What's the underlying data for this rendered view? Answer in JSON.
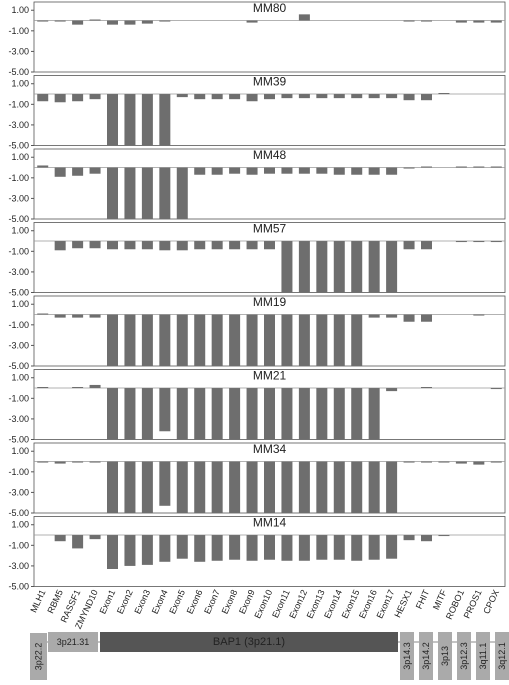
{
  "chart_data": [
    {
      "type": "bar",
      "title": "MM80",
      "color": "#6e6e6e",
      "ylim": [
        -5,
        1.8
      ],
      "yticks": [
        {
          "value": 1,
          "label": "1.00"
        },
        {
          "value": -1,
          "label": "-1.00"
        },
        {
          "value": -3,
          "label": "-3.00"
        },
        {
          "value": -5,
          "label": "-5.00"
        }
      ],
      "values": [
        -0.1,
        -0.1,
        -0.4,
        0.1,
        -0.4,
        -0.4,
        -0.3,
        -0.1,
        0,
        0,
        0,
        0,
        -0.2,
        0,
        0,
        0.6,
        0,
        0,
        0,
        0,
        0,
        -0.1,
        -0.1,
        0,
        -0.2,
        -0.2,
        -0.2
      ]
    },
    {
      "type": "bar",
      "title": "MM39",
      "color": "#6e6e6e",
      "ylim": [
        -5,
        1.8
      ],
      "yticks": [
        {
          "value": 1,
          "label": "1.00"
        },
        {
          "value": -1,
          "label": "-1.00"
        },
        {
          "value": -3,
          "label": "-3.00"
        },
        {
          "value": -5,
          "label": "-5.00"
        }
      ],
      "values": [
        -0.7,
        -0.8,
        -0.7,
        -0.5,
        -5,
        -5,
        -5,
        -5,
        -0.3,
        -0.5,
        -0.5,
        -0.5,
        -0.7,
        -0.5,
        -0.4,
        -0.4,
        -0.4,
        -0.4,
        -0.4,
        -0.4,
        -0.4,
        -0.6,
        -0.6,
        0.1,
        0,
        0,
        0
      ]
    },
    {
      "type": "bar",
      "title": "MM48",
      "color": "#6e6e6e",
      "ylim": [
        -5,
        1.8
      ],
      "yticks": [
        {
          "value": 1,
          "label": "1.00"
        },
        {
          "value": -1,
          "label": "-1.00"
        },
        {
          "value": -3,
          "label": "-3.00"
        },
        {
          "value": -5,
          "label": "-5.00"
        }
      ],
      "values": [
        0.2,
        -0.9,
        -0.8,
        -0.6,
        -5,
        -5,
        -5,
        -5,
        -5,
        -0.7,
        -0.7,
        -0.6,
        -0.7,
        -0.6,
        -0.6,
        -0.6,
        -0.6,
        -0.7,
        -0.7,
        -0.7,
        -0.7,
        -0.1,
        0.1,
        0,
        0.1,
        0.1,
        0.1
      ]
    },
    {
      "type": "bar",
      "title": "MM57",
      "color": "#6e6e6e",
      "ylim": [
        -5,
        1.8
      ],
      "yticks": [
        {
          "value": 1,
          "label": "1.00"
        },
        {
          "value": -1,
          "label": "-1.00"
        },
        {
          "value": -3,
          "label": "-3.00"
        },
        {
          "value": -5,
          "label": "-5.00"
        }
      ],
      "values": [
        0,
        -0.9,
        -0.7,
        -0.7,
        -0.8,
        -0.8,
        -0.8,
        -0.9,
        -0.9,
        -0.8,
        -0.8,
        -0.8,
        -0.8,
        -0.8,
        -5,
        -5,
        -5,
        -5,
        -5,
        -5,
        -5,
        -0.8,
        -0.8,
        0,
        -0.1,
        -0.1,
        -0.1
      ]
    },
    {
      "type": "bar",
      "title": "MM19",
      "color": "#6e6e6e",
      "ylim": [
        -5,
        1.8
      ],
      "yticks": [
        {
          "value": 1,
          "label": "1.00"
        },
        {
          "value": -1,
          "label": "-1.00"
        },
        {
          "value": -3,
          "label": "-3.00"
        },
        {
          "value": -5,
          "label": "-5.00"
        }
      ],
      "values": [
        0.1,
        -0.3,
        -0.3,
        -0.3,
        -5,
        -5,
        -5,
        -5,
        -5,
        -5,
        -5,
        -5,
        -5,
        -5,
        -5,
        -5,
        -5,
        -5,
        -5,
        -0.3,
        -0.3,
        -0.7,
        -0.7,
        0,
        0,
        -0.1,
        0
      ]
    },
    {
      "type": "bar",
      "title": "MM21",
      "color": "#6e6e6e",
      "ylim": [
        -5,
        1.8
      ],
      "yticks": [
        {
          "value": 1,
          "label": "1.00"
        },
        {
          "value": -1,
          "label": "-1.00"
        },
        {
          "value": -3,
          "label": "-3.00"
        },
        {
          "value": -5,
          "label": "-5.00"
        }
      ],
      "values": [
        0.1,
        0,
        0.1,
        0.3,
        -5,
        -5,
        -5,
        -4.2,
        -5,
        -5,
        -5,
        -5,
        -5,
        -5,
        -5,
        -5,
        -5,
        -5,
        -5,
        -5,
        -0.3,
        0,
        0.1,
        0,
        0,
        0,
        -0.1
      ]
    },
    {
      "type": "bar",
      "title": "MM34",
      "color": "#6e6e6e",
      "ylim": [
        -5,
        1.8
      ],
      "yticks": [
        {
          "value": 1,
          "label": "1.00"
        },
        {
          "value": -1,
          "label": "-1.00"
        },
        {
          "value": -3,
          "label": "-3.00"
        },
        {
          "value": -5,
          "label": "-5.00"
        }
      ],
      "values": [
        -0.1,
        -0.2,
        -0.1,
        -0.1,
        -5,
        -5,
        -5,
        -4.3,
        -5,
        -5,
        -5,
        -5,
        -5,
        -5,
        -5,
        -5,
        -5,
        -5,
        -5,
        -5,
        -5,
        -0.1,
        -0.1,
        -0.1,
        -0.2,
        -0.3,
        -0.1
      ]
    },
    {
      "type": "bar",
      "title": "MM14",
      "color": "#6e6e6e",
      "ylim": [
        -5,
        1.8
      ],
      "yticks": [
        {
          "value": 1,
          "label": "1.00"
        },
        {
          "value": -1,
          "label": "-1.00"
        },
        {
          "value": -3,
          "label": "-3.00"
        },
        {
          "value": -5,
          "label": "-5.00"
        }
      ],
      "categories": [
        "MLH1",
        "RBM5",
        "RASSF1",
        "ZMYND10",
        "Exon1",
        "Exon2",
        "Exon3",
        "Exon4",
        "Exon5",
        "Exon6",
        "Exon7",
        "Exon8",
        "Exon9",
        "Exon10",
        "Exon11",
        "Exon12",
        "Exon13",
        "Exon14",
        "Exon15",
        "Exon16",
        "Exon17",
        "HESX1",
        "FHIT",
        "MITF",
        "ROBO1",
        "PROS1",
        "CPOX"
      ],
      "values": [
        0,
        -0.6,
        -1.3,
        -0.4,
        -3.3,
        -3.0,
        -2.9,
        -2.6,
        -2.3,
        -2.6,
        -2.5,
        -2.4,
        -2.5,
        -2.4,
        -2.5,
        -2.5,
        -2.4,
        -2.4,
        -2.5,
        -2.4,
        -2.3,
        -0.5,
        -0.6,
        -0.1,
        0,
        0,
        0
      ]
    }
  ],
  "bands": [
    "3p22.2",
    "3p21.31",
    "BAP1 (3p21.1)",
    "3p14.3",
    "3p14.2",
    "3p13",
    "3p12.3",
    "3q11.1",
    "3q12.1"
  ]
}
